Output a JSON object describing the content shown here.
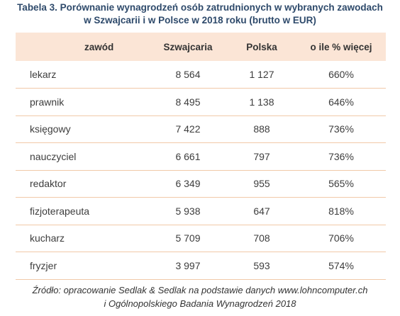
{
  "title": {
    "prefix": "Tabela 3.",
    "line1": "Porównanie wynagrodzeń osób zatrudnionych w wybranych zawodach",
    "line2": "w Szwajcarii i w Polsce w 2018 roku (brutto w EUR)"
  },
  "table": {
    "headers": {
      "job": "zawód",
      "ch": "Szwajcaria",
      "pl": "Polska",
      "pct": "o ile % więcej"
    },
    "rows": [
      {
        "job": "lekarz",
        "ch": "8 564",
        "pl": "1 127",
        "pct": "660%"
      },
      {
        "job": "prawnik",
        "ch": "8 495",
        "pl": "1 138",
        "pct": "646%"
      },
      {
        "job": "księgowy",
        "ch": "7 422",
        "pl": "888",
        "pct": "736%"
      },
      {
        "job": "nauczyciel",
        "ch": "6 661",
        "pl": "797",
        "pct": "736%"
      },
      {
        "job": "redaktor",
        "ch": "6 349",
        "pl": "955",
        "pct": "565%"
      },
      {
        "job": "fizjoterapeuta",
        "ch": "5 938",
        "pl": "647",
        "pct": "818%"
      },
      {
        "job": "kucharz",
        "ch": "5 709",
        "pl": "708",
        "pct": "706%"
      },
      {
        "job": "fryzjer",
        "ch": "3 997",
        "pl": "593",
        "pct": "574%"
      }
    ]
  },
  "source": {
    "line1": "Źródło: opracowanie Sedlak & Sedlak na podstawie danych www.lohncomputer.ch",
    "line2": "i Ogólnopolskiego Badania Wynagrodzeń 2018"
  },
  "colors": {
    "title": "#2e4a6b",
    "header_bg": "#fbe5d6",
    "row_divider": "#f1c9a8"
  }
}
